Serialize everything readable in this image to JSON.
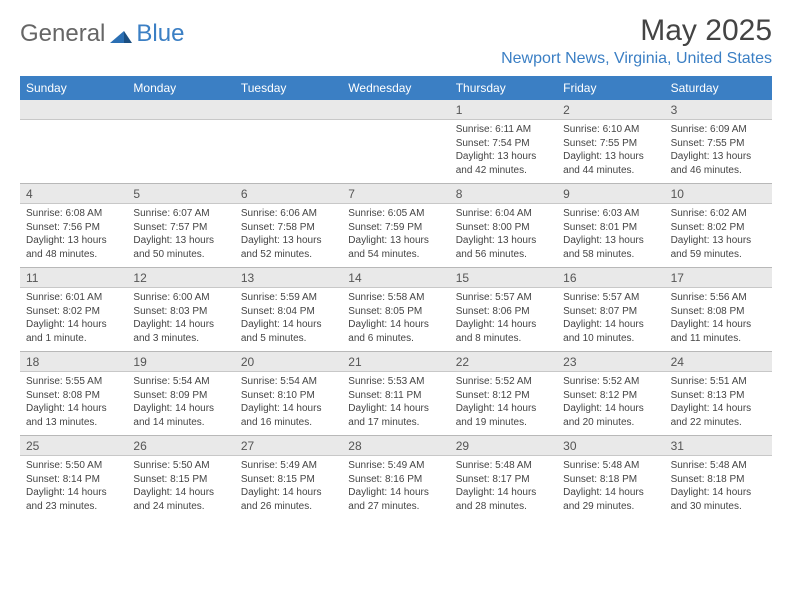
{
  "logo": {
    "word1": "General",
    "word2": "Blue"
  },
  "title": {
    "month": "May 2025",
    "location": "Newport News, Virginia, United States"
  },
  "colors": {
    "header_bg": "#3b7fc4",
    "header_text": "#ffffff",
    "daynum_bg": "#e9e9e9",
    "body_text": "#444444",
    "accent": "#3b7fc4"
  },
  "weekdays": [
    "Sunday",
    "Monday",
    "Tuesday",
    "Wednesday",
    "Thursday",
    "Friday",
    "Saturday"
  ],
  "weeks": [
    [
      {
        "n": "",
        "sr": "",
        "ss": "",
        "dl1": "",
        "dl2": ""
      },
      {
        "n": "",
        "sr": "",
        "ss": "",
        "dl1": "",
        "dl2": ""
      },
      {
        "n": "",
        "sr": "",
        "ss": "",
        "dl1": "",
        "dl2": ""
      },
      {
        "n": "",
        "sr": "",
        "ss": "",
        "dl1": "",
        "dl2": ""
      },
      {
        "n": "1",
        "sr": "Sunrise: 6:11 AM",
        "ss": "Sunset: 7:54 PM",
        "dl1": "Daylight: 13 hours",
        "dl2": "and 42 minutes."
      },
      {
        "n": "2",
        "sr": "Sunrise: 6:10 AM",
        "ss": "Sunset: 7:55 PM",
        "dl1": "Daylight: 13 hours",
        "dl2": "and 44 minutes."
      },
      {
        "n": "3",
        "sr": "Sunrise: 6:09 AM",
        "ss": "Sunset: 7:55 PM",
        "dl1": "Daylight: 13 hours",
        "dl2": "and 46 minutes."
      }
    ],
    [
      {
        "n": "4",
        "sr": "Sunrise: 6:08 AM",
        "ss": "Sunset: 7:56 PM",
        "dl1": "Daylight: 13 hours",
        "dl2": "and 48 minutes."
      },
      {
        "n": "5",
        "sr": "Sunrise: 6:07 AM",
        "ss": "Sunset: 7:57 PM",
        "dl1": "Daylight: 13 hours",
        "dl2": "and 50 minutes."
      },
      {
        "n": "6",
        "sr": "Sunrise: 6:06 AM",
        "ss": "Sunset: 7:58 PM",
        "dl1": "Daylight: 13 hours",
        "dl2": "and 52 minutes."
      },
      {
        "n": "7",
        "sr": "Sunrise: 6:05 AM",
        "ss": "Sunset: 7:59 PM",
        "dl1": "Daylight: 13 hours",
        "dl2": "and 54 minutes."
      },
      {
        "n": "8",
        "sr": "Sunrise: 6:04 AM",
        "ss": "Sunset: 8:00 PM",
        "dl1": "Daylight: 13 hours",
        "dl2": "and 56 minutes."
      },
      {
        "n": "9",
        "sr": "Sunrise: 6:03 AM",
        "ss": "Sunset: 8:01 PM",
        "dl1": "Daylight: 13 hours",
        "dl2": "and 58 minutes."
      },
      {
        "n": "10",
        "sr": "Sunrise: 6:02 AM",
        "ss": "Sunset: 8:02 PM",
        "dl1": "Daylight: 13 hours",
        "dl2": "and 59 minutes."
      }
    ],
    [
      {
        "n": "11",
        "sr": "Sunrise: 6:01 AM",
        "ss": "Sunset: 8:02 PM",
        "dl1": "Daylight: 14 hours",
        "dl2": "and 1 minute."
      },
      {
        "n": "12",
        "sr": "Sunrise: 6:00 AM",
        "ss": "Sunset: 8:03 PM",
        "dl1": "Daylight: 14 hours",
        "dl2": "and 3 minutes."
      },
      {
        "n": "13",
        "sr": "Sunrise: 5:59 AM",
        "ss": "Sunset: 8:04 PM",
        "dl1": "Daylight: 14 hours",
        "dl2": "and 5 minutes."
      },
      {
        "n": "14",
        "sr": "Sunrise: 5:58 AM",
        "ss": "Sunset: 8:05 PM",
        "dl1": "Daylight: 14 hours",
        "dl2": "and 6 minutes."
      },
      {
        "n": "15",
        "sr": "Sunrise: 5:57 AM",
        "ss": "Sunset: 8:06 PM",
        "dl1": "Daylight: 14 hours",
        "dl2": "and 8 minutes."
      },
      {
        "n": "16",
        "sr": "Sunrise: 5:57 AM",
        "ss": "Sunset: 8:07 PM",
        "dl1": "Daylight: 14 hours",
        "dl2": "and 10 minutes."
      },
      {
        "n": "17",
        "sr": "Sunrise: 5:56 AM",
        "ss": "Sunset: 8:08 PM",
        "dl1": "Daylight: 14 hours",
        "dl2": "and 11 minutes."
      }
    ],
    [
      {
        "n": "18",
        "sr": "Sunrise: 5:55 AM",
        "ss": "Sunset: 8:08 PM",
        "dl1": "Daylight: 14 hours",
        "dl2": "and 13 minutes."
      },
      {
        "n": "19",
        "sr": "Sunrise: 5:54 AM",
        "ss": "Sunset: 8:09 PM",
        "dl1": "Daylight: 14 hours",
        "dl2": "and 14 minutes."
      },
      {
        "n": "20",
        "sr": "Sunrise: 5:54 AM",
        "ss": "Sunset: 8:10 PM",
        "dl1": "Daylight: 14 hours",
        "dl2": "and 16 minutes."
      },
      {
        "n": "21",
        "sr": "Sunrise: 5:53 AM",
        "ss": "Sunset: 8:11 PM",
        "dl1": "Daylight: 14 hours",
        "dl2": "and 17 minutes."
      },
      {
        "n": "22",
        "sr": "Sunrise: 5:52 AM",
        "ss": "Sunset: 8:12 PM",
        "dl1": "Daylight: 14 hours",
        "dl2": "and 19 minutes."
      },
      {
        "n": "23",
        "sr": "Sunrise: 5:52 AM",
        "ss": "Sunset: 8:12 PM",
        "dl1": "Daylight: 14 hours",
        "dl2": "and 20 minutes."
      },
      {
        "n": "24",
        "sr": "Sunrise: 5:51 AM",
        "ss": "Sunset: 8:13 PM",
        "dl1": "Daylight: 14 hours",
        "dl2": "and 22 minutes."
      }
    ],
    [
      {
        "n": "25",
        "sr": "Sunrise: 5:50 AM",
        "ss": "Sunset: 8:14 PM",
        "dl1": "Daylight: 14 hours",
        "dl2": "and 23 minutes."
      },
      {
        "n": "26",
        "sr": "Sunrise: 5:50 AM",
        "ss": "Sunset: 8:15 PM",
        "dl1": "Daylight: 14 hours",
        "dl2": "and 24 minutes."
      },
      {
        "n": "27",
        "sr": "Sunrise: 5:49 AM",
        "ss": "Sunset: 8:15 PM",
        "dl1": "Daylight: 14 hours",
        "dl2": "and 26 minutes."
      },
      {
        "n": "28",
        "sr": "Sunrise: 5:49 AM",
        "ss": "Sunset: 8:16 PM",
        "dl1": "Daylight: 14 hours",
        "dl2": "and 27 minutes."
      },
      {
        "n": "29",
        "sr": "Sunrise: 5:48 AM",
        "ss": "Sunset: 8:17 PM",
        "dl1": "Daylight: 14 hours",
        "dl2": "and 28 minutes."
      },
      {
        "n": "30",
        "sr": "Sunrise: 5:48 AM",
        "ss": "Sunset: 8:18 PM",
        "dl1": "Daylight: 14 hours",
        "dl2": "and 29 minutes."
      },
      {
        "n": "31",
        "sr": "Sunrise: 5:48 AM",
        "ss": "Sunset: 8:18 PM",
        "dl1": "Daylight: 14 hours",
        "dl2": "and 30 minutes."
      }
    ]
  ]
}
